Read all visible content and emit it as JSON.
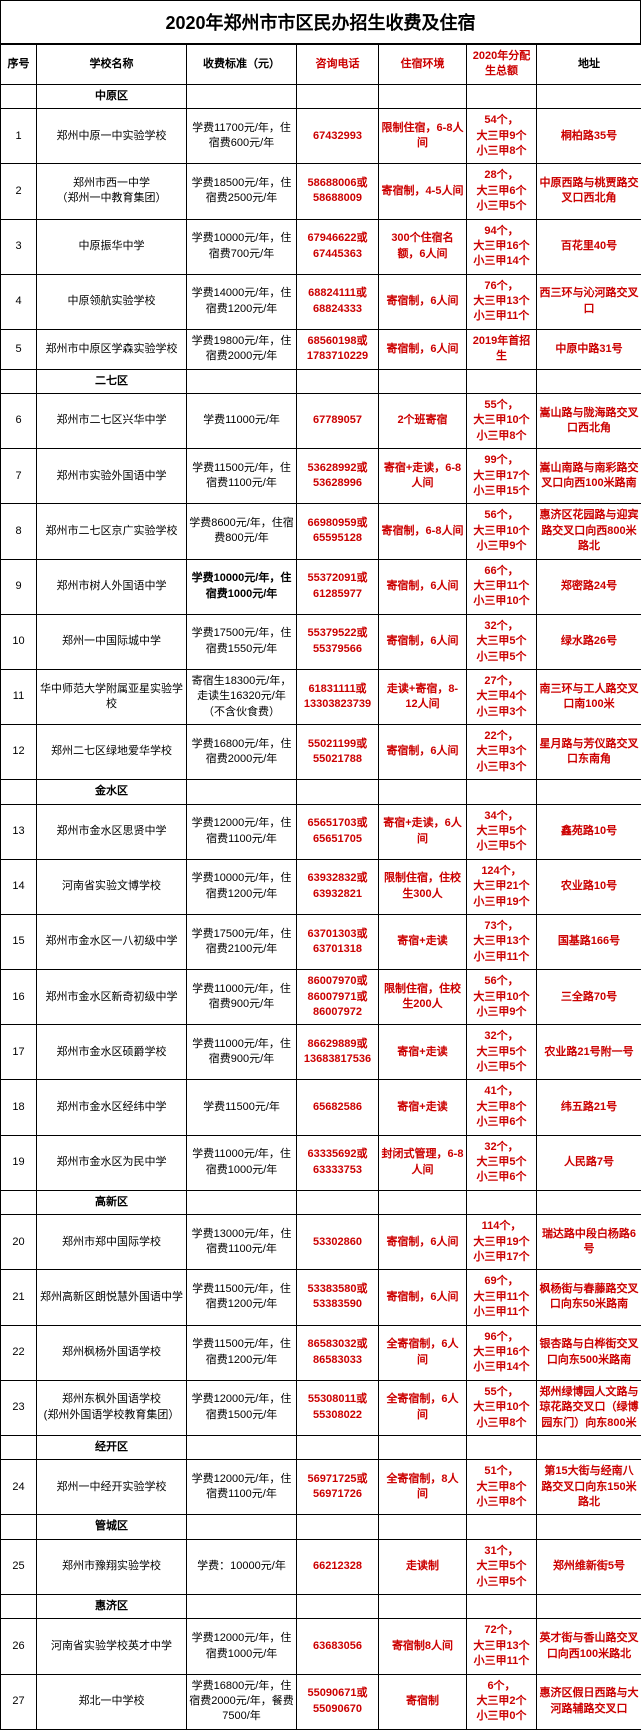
{
  "title": "2020年郑州市市区民办招生收费及住宿",
  "headers": {
    "id": "序号",
    "name": "学校名称",
    "fee": "收费标准（元）",
    "phone": "咨询电话",
    "dorm": "住宿环境",
    "quota": "2020年分配生总额",
    "addr": "地址"
  },
  "sections": [
    {
      "district": "中原区",
      "rows": [
        {
          "id": "1",
          "name": "郑州中原一中实验学校",
          "fee": "学费11700元/年，住宿费600元/年",
          "phone": "67432993",
          "dorm": "限制住宿，6-8人间",
          "quota": [
            "54个，",
            "大三甲9个",
            "小三甲8个"
          ],
          "addr": "桐柏路35号"
        },
        {
          "id": "2",
          "name": "郑州市西一中学\n（郑州一中教育集团）",
          "fee": "学费18500元/年，住宿费2500元/年",
          "phone": "58688006或58688009",
          "dorm": "寄宿制，4-5人间",
          "quota": [
            "28个，",
            "大三甲6个",
            "小三甲5个"
          ],
          "addr": "中原西路与桃贾路交叉口西北角"
        },
        {
          "id": "3",
          "name": "中原振华中学",
          "fee": "学费10000元/年，住宿费700元/年",
          "phone": "67946622或67445363",
          "dorm": "300个住宿名额，6人间",
          "quota": [
            "94个，",
            "大三甲16个",
            "小三甲14个"
          ],
          "addr": "百花里40号"
        },
        {
          "id": "4",
          "name": "中原领航实验学校",
          "fee": "学费14000元/年，住宿费1200元/年",
          "phone": "68824111或68824333",
          "dorm": "寄宿制，6人间",
          "quota": [
            "76个，",
            "大三甲13个",
            "小三甲11个"
          ],
          "addr": "西三环与沁河路交叉口"
        },
        {
          "id": "5",
          "name": "郑州市中原区学森实验学校",
          "fee": "学费19800元/年，住宿费2000元/年",
          "phone": "68560198或1783710229",
          "dorm": "寄宿制，6人间",
          "quota": [
            "2019年首招生"
          ],
          "addr": "中原中路31号"
        }
      ]
    },
    {
      "district": "二七区",
      "rows": [
        {
          "id": "6",
          "name": "郑州市二七区兴华中学",
          "fee": "学费11000元/年",
          "phone": "67789057",
          "dorm": "2个班寄宿",
          "quota": [
            "55个，",
            "大三甲10个",
            "小三甲8个"
          ],
          "addr": "嵩山路与陇海路交叉口西北角"
        },
        {
          "id": "7",
          "name": "郑州市实验外国语中学",
          "fee": "学费11500元/年，住宿费1100元/年",
          "phone": "53628992或53628996",
          "dorm": "寄宿+走读，6-8人间",
          "quota": [
            "99个，",
            "大三甲17个",
            "小三甲15个"
          ],
          "addr": "嵩山南路与南彩路交叉口向西100米路南"
        },
        {
          "id": "8",
          "name": "郑州市二七区京广实验学校",
          "fee": "学费8600元/年，住宿费800元/年",
          "phone": "66980959或65595128",
          "dorm": "寄宿制，6-8人间",
          "quota": [
            "56个，",
            "大三甲10个",
            "小三甲9个"
          ],
          "addr": "惠济区花园路与迎宾路交叉口向西800米路北"
        },
        {
          "id": "9",
          "name": "郑州市树人外国语中学",
          "fee": "学费10000元/年，住宿费1000元/年",
          "fee_bold": true,
          "phone": "55372091或61285977",
          "dorm": "寄宿制，6人间",
          "quota": [
            "66个，",
            "大三甲11个",
            "小三甲10个"
          ],
          "addr": "郑密路24号"
        },
        {
          "id": "10",
          "name": "郑州一中国际城中学",
          "fee": "学费17500元/年，住宿费1550元/年",
          "phone": "55379522或55379566",
          "dorm": "寄宿制，6人间",
          "quota": [
            "32个，",
            "大三甲5个",
            "小三甲5个"
          ],
          "addr": "绿水路26号"
        },
        {
          "id": "11",
          "name": "华中师范大学附属亚星实验学校",
          "fee": "寄宿生18300元/年，走读生16320元/年（不含伙食费）",
          "phone": "61831111或13303823739",
          "dorm": "走读+寄宿，8-12人间",
          "quota": [
            "27个，",
            "大三甲4个",
            "小三甲3个"
          ],
          "addr": "南三环与工人路交叉口南100米"
        },
        {
          "id": "12",
          "name": "郑州二七区绿地爱华学校",
          "fee": "学费16800元/年，住宿费2000元/年",
          "phone": "55021199或55021788",
          "dorm": "寄宿制，6人间",
          "quota": [
            "22个，",
            "大三甲3个",
            "小三甲3个"
          ],
          "addr": "星月路与芳仪路交叉口东南角"
        }
      ]
    },
    {
      "district": "金水区",
      "rows": [
        {
          "id": "13",
          "name": "郑州市金水区思贤中学",
          "fee": "学费12000元/年，住宿费1100元/年",
          "phone": "65651703或65651705",
          "dorm": "寄宿+走读，6人间",
          "quota": [
            "34个，",
            "大三甲5个",
            "小三甲5个"
          ],
          "addr": "鑫苑路10号"
        },
        {
          "id": "14",
          "name": "河南省实验文博学校",
          "fee": "学费10000元/年，住宿费1200元/年",
          "phone": "63932832或63932821",
          "dorm": "限制住宿，住校生300人",
          "quota": [
            "124个，",
            "大三甲21个",
            "小三甲19个"
          ],
          "addr": "农业路10号"
        },
        {
          "id": "15",
          "name": "郑州市金水区一八初级中学",
          "fee": "学费17500元/年，住宿费2100元/年",
          "phone": "63701303或63701318",
          "dorm": "寄宿+走读",
          "quota": [
            "73个，",
            "大三甲13个",
            "小三甲11个"
          ],
          "addr": "国基路166号"
        },
        {
          "id": "16",
          "name": "郑州市金水区新奇初级中学",
          "fee": "学费11000元/年，住宿费900元/年",
          "phone": "86007970或86007971或86007972",
          "dorm": "限制住宿，住校生200人",
          "quota": [
            "56个，",
            "大三甲10个",
            "小三甲9个"
          ],
          "addr": "三全路70号"
        },
        {
          "id": "17",
          "name": "郑州市金水区硕爵学校",
          "fee": "学费11000元/年，住宿费900元/年",
          "phone": "86629889或13683817536",
          "dorm": "寄宿+走读",
          "quota": [
            "32个，",
            "大三甲5个",
            "小三甲5个"
          ],
          "addr": "农业路21号附一号"
        },
        {
          "id": "18",
          "name": "郑州市金水区经纬中学",
          "fee": "学费11500元/年",
          "phone": "65682586",
          "dorm": "寄宿+走读",
          "quota": [
            "41个，",
            "大三甲8个",
            "小三甲6个"
          ],
          "addr": "纬五路21号"
        },
        {
          "id": "19",
          "name": "郑州市金水区为民中学",
          "fee": "学费11000元/年，住宿费1000元/年",
          "phone": "63335692或63333753",
          "dorm": "封闭式管理，6-8人间",
          "quota": [
            "32个，",
            "大三甲5个",
            "小三甲6个"
          ],
          "addr": "人民路7号"
        }
      ]
    },
    {
      "district": "高新区",
      "rows": [
        {
          "id": "20",
          "name": "郑州市郑中国际学校",
          "fee": "学费13000元/年，住宿费1100元/年",
          "phone": "53302860",
          "dorm": "寄宿制，6人间",
          "quota": [
            "114个，",
            "大三甲19个",
            "小三甲17个"
          ],
          "addr": "瑞达路中段白杨路6号"
        },
        {
          "id": "21",
          "name": "郑州高新区朗悦慧外国语中学",
          "fee": "学费11500元/年，住宿费1200元/年",
          "phone": "53383580或53383590",
          "dorm": "寄宿制，6人间",
          "quota": [
            "69个，",
            "大三甲11个",
            "小三甲11个"
          ],
          "addr": "枫杨街与春藤路交叉口向东50米路南"
        },
        {
          "id": "22",
          "name": "郑州枫杨外国语学校",
          "fee": "学费11500元/年，住宿费1200元/年",
          "phone": "86583032或86583033",
          "dorm": "全寄宿制，6人间",
          "quota": [
            "96个，",
            "大三甲16个",
            "小三甲14个"
          ],
          "addr": "银杏路与白桦街交叉口向东500米路南"
        },
        {
          "id": "23",
          "name": "郑州东枫外国语学校\n(郑州外国语学校教育集团）",
          "fee": "学费12000元/年，住宿费1500元/年",
          "phone": "55308011或55308022",
          "dorm": "全寄宿制，6人间",
          "quota": [
            "55个，",
            "大三甲10个",
            "小三甲8个"
          ],
          "addr": "郑州绿博园人文路与琼花路交叉口（绿博园东门）向东800米"
        }
      ]
    },
    {
      "district": "经开区",
      "rows": [
        {
          "id": "24",
          "name": "郑州一中经开实验学校",
          "fee": "学费12000元/年，住宿费1100元/年",
          "phone": "56971725或56971726",
          "dorm": "全寄宿制，8人间",
          "quota": [
            "51个，",
            "大三甲8个",
            "小三甲8个"
          ],
          "addr": "第15大街与经南八路交叉口向东150米路北"
        }
      ]
    },
    {
      "district": "管城区",
      "rows": [
        {
          "id": "25",
          "name": "郑州市豫翔实验学校",
          "fee": "学费：10000元/年",
          "phone": "66212328",
          "dorm": "走读制",
          "quota": [
            "31个，",
            "大三甲5个",
            "小三甲5个"
          ],
          "addr": "郑州维新街5号"
        }
      ]
    },
    {
      "district": "惠济区",
      "rows": [
        {
          "id": "26",
          "name": "河南省实验学校英才中学",
          "fee": "学费12000元/年，住宿费1000元/年",
          "phone": "63683056",
          "dorm": "寄宿制8人间",
          "quota": [
            "72个，",
            "大三甲13个",
            "小三甲11个"
          ],
          "addr": "英才街与香山路交叉口向西100米路北"
        },
        {
          "id": "27",
          "name": "郑北一中学校",
          "fee": "学费16800元/年，住宿费2000元/年，餐费7500/年",
          "phone": "55090671或55090670",
          "dorm": "寄宿制",
          "quota": [
            "6个，",
            "大三甲2个",
            "小三甲0个"
          ],
          "addr": "惠济区假日西路与大河路辅路交叉口"
        }
      ]
    }
  ]
}
